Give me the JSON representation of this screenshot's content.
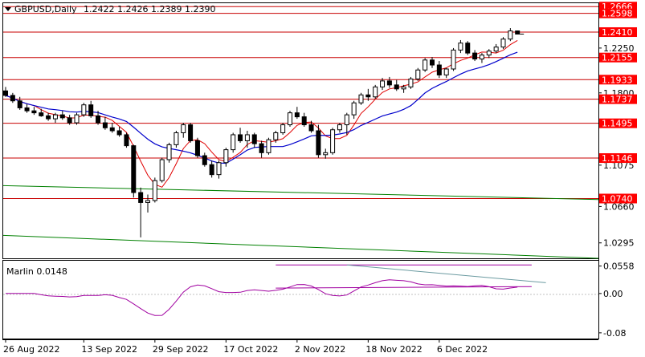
{
  "header": {
    "symbol_label": "GBPUSD,Daily",
    "ohlc_values": "1.2422 1.2426 1.2389 1.2390"
  },
  "oscillator": {
    "label": "Marlin 0.0148",
    "axis_labels": [
      "0.0558",
      "0.00",
      "-0.08"
    ]
  },
  "x_axis_labels": [
    "26 Aug 2022",
    "13 Sep 2022",
    "29 Sep 2022",
    "17 Oct 2022",
    "2 Nov 2022",
    "18 Nov 2022",
    "6 Dec 2022"
  ],
  "price_axis_labels": [
    "1.2250",
    "1.1800",
    "1.1075",
    "1.0660",
    "1.0295"
  ],
  "levels": [
    {
      "value": "1.2666",
      "highlight": true
    },
    {
      "value": "1.2598",
      "highlight": true
    },
    {
      "value": "1.2410",
      "highlight": true
    },
    {
      "value": "1.2155",
      "highlight": true
    },
    {
      "value": "1.1933",
      "highlight": true
    },
    {
      "value": "1.1737",
      "highlight": true
    },
    {
      "value": "1.1495",
      "highlight": true
    },
    {
      "value": "1.1146",
      "highlight": true
    },
    {
      "value": "1.0740",
      "highlight": true
    }
  ],
  "colors": {
    "level_line": "#c80000",
    "tag_bg": "#ff0000",
    "tag_text": "#ffffff",
    "ma_fast": "#e00000",
    "ma_slow": "#0000cc",
    "ma_long": "#008000",
    "oscillator": "#a000a0",
    "candle_bull": "#ffffff",
    "candle_bear": "#000000"
  },
  "chart_data": {
    "type": "candlestick",
    "symbol": "GBPUSD",
    "timeframe": "Daily",
    "candles": [
      [
        1.182,
        1.186,
        1.176,
        1.1775
      ],
      [
        1.1775,
        1.18,
        1.17,
        1.172
      ],
      [
        1.172,
        1.176,
        1.163,
        1.165
      ],
      [
        1.165,
        1.169,
        1.16,
        1.162
      ],
      [
        1.162,
        1.166,
        1.158,
        1.16
      ],
      [
        1.16,
        1.164,
        1.156,
        1.157
      ],
      [
        1.157,
        1.16,
        1.152,
        1.154
      ],
      [
        1.154,
        1.16,
        1.15,
        1.158
      ],
      [
        1.158,
        1.162,
        1.153,
        1.155
      ],
      [
        1.155,
        1.158,
        1.148,
        1.15
      ],
      [
        1.15,
        1.16,
        1.148,
        1.158
      ],
      [
        1.158,
        1.17,
        1.156,
        1.168
      ],
      [
        1.168,
        1.172,
        1.155,
        1.157
      ],
      [
        1.157,
        1.162,
        1.148,
        1.15
      ],
      [
        1.15,
        1.156,
        1.143,
        1.145
      ],
      [
        1.145,
        1.15,
        1.14,
        1.142
      ],
      [
        1.142,
        1.146,
        1.136,
        1.138
      ],
      [
        1.138,
        1.14,
        1.125,
        1.127
      ],
      [
        1.127,
        1.128,
        1.075,
        1.08
      ],
      [
        1.08,
        1.085,
        1.035,
        1.07
      ],
      [
        1.07,
        1.078,
        1.06,
        1.072
      ],
      [
        1.072,
        1.095,
        1.07,
        1.092
      ],
      [
        1.092,
        1.115,
        1.09,
        1.113
      ],
      [
        1.113,
        1.13,
        1.11,
        1.128
      ],
      [
        1.128,
        1.142,
        1.125,
        1.14
      ],
      [
        1.14,
        1.15,
        1.135,
        1.148
      ],
      [
        1.148,
        1.15,
        1.13,
        1.132
      ],
      [
        1.132,
        1.135,
        1.115,
        1.117
      ],
      [
        1.117,
        1.12,
        1.106,
        1.108
      ],
      [
        1.108,
        1.112,
        1.095,
        1.098
      ],
      [
        1.098,
        1.112,
        1.094,
        1.11
      ],
      [
        1.11,
        1.125,
        1.106,
        1.123
      ],
      [
        1.123,
        1.14,
        1.12,
        1.138
      ],
      [
        1.138,
        1.145,
        1.13,
        1.132
      ],
      [
        1.132,
        1.142,
        1.125,
        1.138
      ],
      [
        1.138,
        1.14,
        1.125,
        1.129
      ],
      [
        1.129,
        1.132,
        1.115,
        1.12
      ],
      [
        1.12,
        1.135,
        1.118,
        1.133
      ],
      [
        1.133,
        1.142,
        1.13,
        1.14
      ],
      [
        1.14,
        1.15,
        1.138,
        1.148
      ],
      [
        1.148,
        1.162,
        1.146,
        1.16
      ],
      [
        1.16,
        1.166,
        1.154,
        1.156
      ],
      [
        1.156,
        1.16,
        1.146,
        1.148
      ],
      [
        1.148,
        1.152,
        1.14,
        1.142
      ],
      [
        1.142,
        1.148,
        1.115,
        1.118
      ],
      [
        1.118,
        1.124,
        1.114,
        1.12
      ],
      [
        1.12,
        1.145,
        1.118,
        1.143
      ],
      [
        1.143,
        1.15,
        1.14,
        1.148
      ],
      [
        1.148,
        1.16,
        1.138,
        1.158
      ],
      [
        1.158,
        1.172,
        1.154,
        1.17
      ],
      [
        1.17,
        1.18,
        1.168,
        1.178
      ],
      [
        1.178,
        1.184,
        1.172,
        1.176
      ],
      [
        1.176,
        1.188,
        1.174,
        1.186
      ],
      [
        1.186,
        1.195,
        1.183,
        1.192
      ],
      [
        1.192,
        1.196,
        1.185,
        1.188
      ],
      [
        1.188,
        1.193,
        1.182,
        1.184
      ],
      [
        1.184,
        1.188,
        1.18,
        1.186
      ],
      [
        1.186,
        1.196,
        1.184,
        1.194
      ],
      [
        1.194,
        1.205,
        1.192,
        1.203
      ],
      [
        1.203,
        1.215,
        1.201,
        1.213
      ],
      [
        1.213,
        1.216,
        1.205,
        1.208
      ],
      [
        1.208,
        1.212,
        1.195,
        1.198
      ],
      [
        1.198,
        1.205,
        1.195,
        1.204
      ],
      [
        1.204,
        1.225,
        1.202,
        1.223
      ],
      [
        1.223,
        1.233,
        1.22,
        1.23
      ],
      [
        1.23,
        1.232,
        1.218,
        1.22
      ],
      [
        1.22,
        1.223,
        1.212,
        1.214
      ],
      [
        1.214,
        1.22,
        1.21,
        1.218
      ],
      [
        1.218,
        1.224,
        1.215,
        1.222
      ],
      [
        1.222,
        1.229,
        1.22,
        1.226
      ],
      [
        1.226,
        1.236,
        1.224,
        1.234
      ],
      [
        1.234,
        1.245,
        1.232,
        1.2422
      ],
      [
        1.2422,
        1.2426,
        1.2389,
        1.239
      ]
    ],
    "moving_averages": [
      {
        "name": "fast",
        "color": "#e00000"
      },
      {
        "name": "slow",
        "color": "#0000cc"
      },
      {
        "name": "long",
        "color": "#008000"
      }
    ],
    "oscillator": {
      "name": "Marlin",
      "last_value": 0.0148,
      "ylim": [
        -0.09,
        0.065
      ],
      "ticks": [
        0.0558,
        0.0,
        -0.08
      ]
    }
  }
}
